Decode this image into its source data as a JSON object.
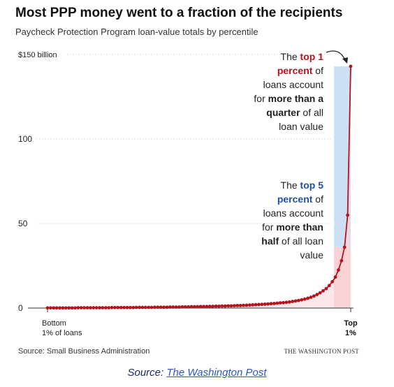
{
  "chart_data": {
    "type": "line",
    "title": "Most PPP money went to a fraction of the recipients",
    "subtitle": "Paycheck Protection Program loan-value totals by percentile",
    "ylim": [
      0,
      150
    ],
    "y_ticks": [
      "$150 billion",
      "100",
      "50",
      "0"
    ],
    "y_tick_values": [
      150,
      100,
      50,
      0
    ],
    "x_start_label": [
      "Bottom",
      "1% of loans"
    ],
    "x_end_label": [
      "Top",
      "1%"
    ],
    "x": [
      1,
      2,
      3,
      4,
      5,
      6,
      7,
      8,
      9,
      10,
      11,
      12,
      13,
      14,
      15,
      16,
      17,
      18,
      19,
      20,
      21,
      22,
      23,
      24,
      25,
      26,
      27,
      28,
      29,
      30,
      31,
      32,
      33,
      34,
      35,
      36,
      37,
      38,
      39,
      40,
      41,
      42,
      43,
      44,
      45,
      46,
      47,
      48,
      49,
      50,
      51,
      52,
      53,
      54,
      55,
      56,
      57,
      58,
      59,
      60,
      61,
      62,
      63,
      64,
      65,
      66,
      67,
      68,
      69,
      70,
      71,
      72,
      73,
      74,
      75,
      76,
      77,
      78,
      79,
      80,
      81,
      82,
      83,
      84,
      85,
      86,
      87,
      88,
      89,
      90,
      91,
      92,
      93,
      94,
      95,
      96,
      97,
      98,
      99,
      100
    ],
    "values": [
      0.1,
      0.1,
      0.1,
      0.1,
      0.1,
      0.1,
      0.1,
      0.1,
      0.1,
      0.1,
      0.2,
      0.2,
      0.2,
      0.2,
      0.2,
      0.2,
      0.2,
      0.2,
      0.2,
      0.2,
      0.2,
      0.3,
      0.3,
      0.3,
      0.3,
      0.3,
      0.3,
      0.3,
      0.3,
      0.4,
      0.4,
      0.4,
      0.4,
      0.4,
      0.4,
      0.5,
      0.5,
      0.5,
      0.5,
      0.5,
      0.6,
      0.6,
      0.6,
      0.6,
      0.7,
      0.7,
      0.7,
      0.8,
      0.8,
      0.8,
      0.9,
      0.9,
      0.9,
      1.0,
      1.0,
      1.1,
      1.1,
      1.2,
      1.2,
      1.3,
      1.3,
      1.4,
      1.5,
      1.5,
      1.6,
      1.7,
      1.8,
      1.9,
      2.0,
      2.1,
      2.2,
      2.3,
      2.4,
      2.6,
      2.7,
      2.9,
      3.1,
      3.2,
      3.4,
      3.6,
      3.9,
      4.2,
      4.5,
      4.9,
      5.3,
      5.8,
      6.4,
      7.1,
      8.0,
      9.0,
      10.2,
      11.5,
      13.3,
      15.6,
      18.3,
      22.5,
      28.0,
      36.0,
      55.0,
      143.0
    ],
    "highlight_regions": [
      {
        "name": "top 1 percent",
        "color": "#cde0f5"
      },
      {
        "name": "top 5 percent",
        "color": "#f8d3d6"
      }
    ],
    "series_color": "#b3141d",
    "grid": false
  },
  "annotations": {
    "top1": [
      [
        {
          "t": "The ",
          "s": "n"
        },
        {
          "t": "top 1",
          "s": "red"
        }
      ],
      [
        {
          "t": "percent",
          "s": "red"
        },
        {
          "t": " of",
          "s": "n"
        }
      ],
      [
        {
          "t": "loans account",
          "s": "n"
        }
      ],
      [
        {
          "t": "for ",
          "s": "n"
        },
        {
          "t": "more than a",
          "s": "b"
        }
      ],
      [
        {
          "t": "quarter",
          "s": "b"
        },
        {
          "t": " of all",
          "s": "n"
        }
      ],
      [
        {
          "t": "loan value",
          "s": "n"
        }
      ]
    ],
    "top5": [
      [
        {
          "t": "The ",
          "s": "n"
        },
        {
          "t": "top 5",
          "s": "blue"
        }
      ],
      [
        {
          "t": "percent",
          "s": "blue"
        },
        {
          "t": " of",
          "s": "n"
        }
      ],
      [
        {
          "t": "loans account",
          "s": "n"
        }
      ],
      [
        {
          "t": "for ",
          "s": "n"
        },
        {
          "t": "more than",
          "s": "b"
        }
      ],
      [
        {
          "t": "half",
          "s": "b"
        },
        {
          "t": " of all loan",
          "s": "n"
        }
      ],
      [
        {
          "t": "value",
          "s": "n"
        }
      ]
    ]
  },
  "footer": {
    "source": "Source: Small Business Administration",
    "credit": "THE WASHINGTON POST"
  },
  "caption": {
    "prefix": "Source: ",
    "link": "The Washington Post"
  }
}
